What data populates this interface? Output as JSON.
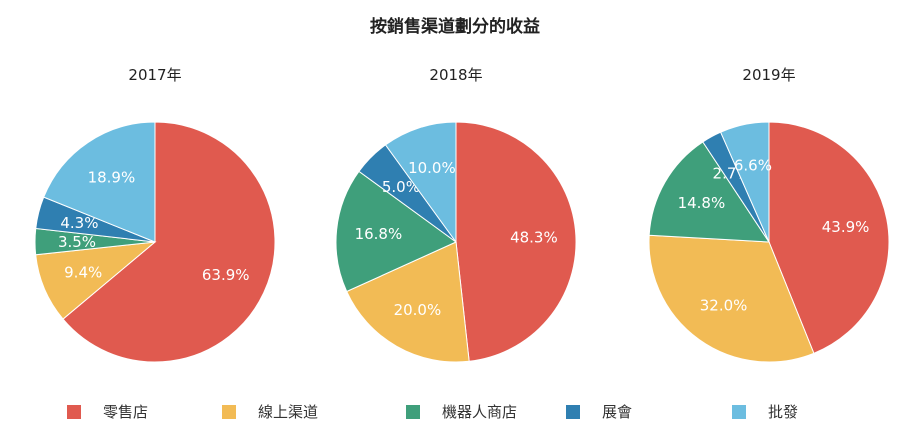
{
  "chart_data": {
    "type": "pie",
    "title": "按銷售渠道劃分的收益",
    "categories": [
      "零售店",
      "線上渠道",
      "機器人商店",
      "展會",
      "批發"
    ],
    "colors": [
      "#e05a4f",
      "#f2bb55",
      "#3f9f7b",
      "#2f7fb1",
      "#6cbde0"
    ],
    "pies": [
      {
        "name": "2017年",
        "values": [
          63.9,
          9.4,
          3.5,
          4.3,
          18.9
        ],
        "labels": [
          "63.9%",
          "9.4%",
          "3.5%",
          "4.3%",
          "18.9%"
        ]
      },
      {
        "name": "2018年",
        "values": [
          48.3,
          20.0,
          16.8,
          5.0,
          10.0
        ],
        "labels": [
          "48.3%",
          "20.0%",
          "16.8%",
          "5.0%",
          "10.0%"
        ]
      },
      {
        "name": "2019年",
        "values": [
          43.9,
          32.0,
          14.8,
          2.7,
          6.6
        ],
        "labels": [
          "43.9%",
          "32.0%",
          "14.8%",
          "2.7%",
          "6.6%"
        ]
      }
    ],
    "legend_position": "bottom"
  }
}
